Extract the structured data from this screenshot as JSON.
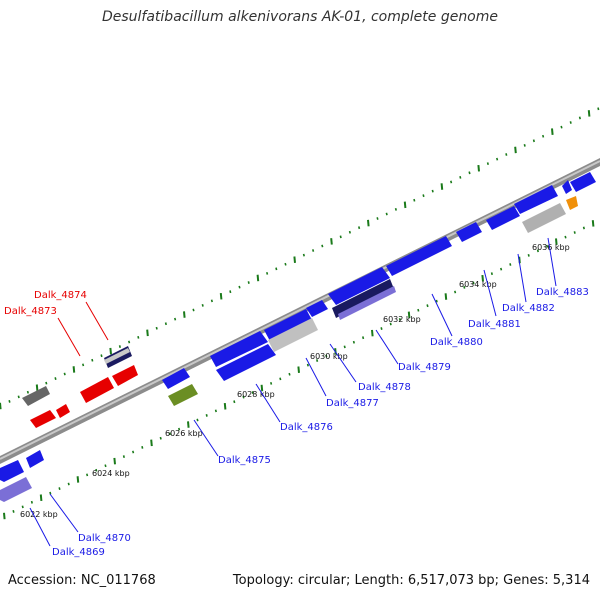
{
  "title": "Desulfatibacillum alkenivorans AK-01, complete genome",
  "footer": {
    "accession": "Accession: NC_011768",
    "summary": "Topology: circular; Length: 6,517,073 bp; Genes: 5,314"
  },
  "colors": {
    "forward": "#1a1ae6",
    "reverse_blue": "#1a1ae6",
    "selected": "#e60000",
    "pseudo": "#b0b0b0",
    "dark": "#101060",
    "purple": "#7b6fd6",
    "olive": "#6b8e23",
    "orange": "#f0900a",
    "gray": "#707070",
    "gc_tick": "#1a7a1a"
  },
  "ticks": {
    "unit": "kbp",
    "labels": [
      "6022 kbp",
      "6024 kbp",
      "6026 kbp",
      "6028 kbp",
      "6030 kbp",
      "6032 kbp",
      "6034 kbp",
      "6036 kbp"
    ]
  },
  "genes": [
    {
      "name": "Dalk_4869",
      "color": "blue"
    },
    {
      "name": "Dalk_4870",
      "color": "blue"
    },
    {
      "name": "Dalk_4873",
      "color": "red"
    },
    {
      "name": "Dalk_4874",
      "color": "red"
    },
    {
      "name": "Dalk_4875",
      "color": "blue"
    },
    {
      "name": "Dalk_4876",
      "color": "blue"
    },
    {
      "name": "Dalk_4877",
      "color": "blue"
    },
    {
      "name": "Dalk_4878",
      "color": "blue"
    },
    {
      "name": "Dalk_4879",
      "color": "blue"
    },
    {
      "name": "Dalk_4880",
      "color": "blue"
    },
    {
      "name": "Dalk_4881",
      "color": "blue"
    },
    {
      "name": "Dalk_4882",
      "color": "blue"
    },
    {
      "name": "Dalk_4883",
      "color": "blue"
    }
  ]
}
